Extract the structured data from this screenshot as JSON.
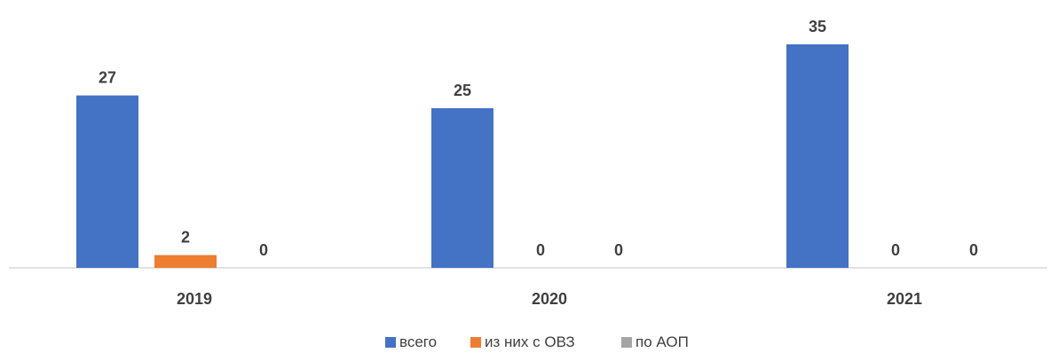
{
  "chart_data": {
    "type": "bar",
    "categories": [
      "2019",
      "2020",
      "2021"
    ],
    "series": [
      {
        "name": "всего",
        "values": [
          27,
          25,
          35
        ],
        "color": "#4472C4"
      },
      {
        "name": "из них с ОВЗ",
        "values": [
          2,
          0,
          0
        ],
        "color": "#ED7D31"
      },
      {
        "name": "по АОП",
        "values": [
          0,
          0,
          0
        ],
        "color": "#A5A5A5"
      }
    ],
    "ylim": [
      0,
      35
    ],
    "grid": false,
    "data_labels": true,
    "legend_position": "bottom"
  }
}
